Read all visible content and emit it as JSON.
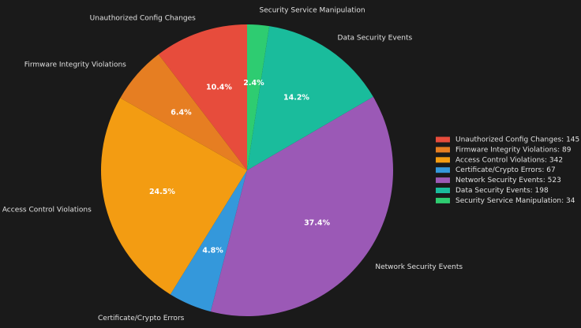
{
  "chart_data": {
    "type": "pie",
    "categories": [
      "Unauthorized Config Changes",
      "Firmware Integrity Violations",
      "Access Control Violations",
      "Certificate/Crypto Errors",
      "Network Security Events",
      "Data Security Events",
      "Security Service Manipulation"
    ],
    "values": [
      145,
      89,
      342,
      67,
      523,
      198,
      34
    ],
    "percent_labels": [
      "10.4%",
      "6.4%",
      "24.5%",
      "4.8%",
      "37.4%",
      "14.2%",
      "2.4%"
    ],
    "legend_entries": [
      "Unauthorized Config Changes: 145",
      "Firmware Integrity Violations: 89",
      "Access Control Violations: 342",
      "Certificate/Crypto Errors: 67",
      "Network Security Events: 523",
      "Data Security Events: 198",
      "Security Service Manipulation: 34"
    ],
    "colors": [
      "#e74c3c",
      "#e67e22",
      "#f39c12",
      "#3498db",
      "#9b59b6",
      "#1abc9c",
      "#2ecc71"
    ],
    "start_angle": 90,
    "direction": "counterclockwise",
    "legend_position": "right",
    "background": "#1a1a1a"
  }
}
